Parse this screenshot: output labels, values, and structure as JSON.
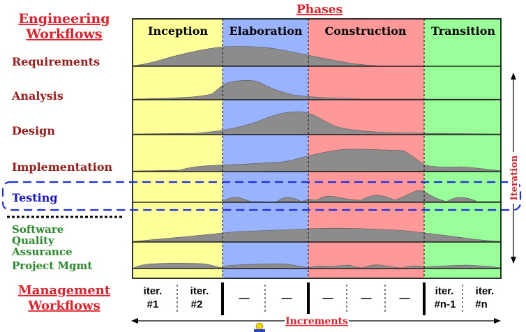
{
  "diagram": {
    "title_lines": [
      "Engineering",
      "Workflows"
    ],
    "phases_label": "Phases",
    "phases": [
      {
        "label": "Inception",
        "color": "#ffff99"
      },
      {
        "label": "Elaboration",
        "color": "#99b3ff"
      },
      {
        "label": "Construction",
        "color": "#ff9999"
      },
      {
        "label": "Transition",
        "color": "#99ff99"
      }
    ],
    "workflows": [
      {
        "label": "Requirements",
        "color": "#9b1b1b"
      },
      {
        "label": "Analysis",
        "color": "#9b1b1b"
      },
      {
        "label": "Design",
        "color": "#9b1b1b"
      },
      {
        "label": "Implementation",
        "color": "#9b1b1b"
      },
      {
        "label": "Testing",
        "color": "#1515c8"
      },
      {
        "label": "Software",
        "color": "#2a8a2a"
      },
      {
        "label": "Quality",
        "color": "#2a8a2a"
      },
      {
        "label": "Assurance",
        "color": "#2a8a2a"
      },
      {
        "label": "Project Mgmt",
        "color": "#2a8a2a"
      }
    ],
    "management_lines": [
      "Management",
      "Workflows"
    ],
    "iterations": [
      {
        "top": "iter.",
        "bottom": "#1"
      },
      {
        "top": "iter.",
        "bottom": "#2"
      },
      {
        "top": "—",
        "bottom": ""
      },
      {
        "top": "—",
        "bottom": ""
      },
      {
        "top": "—",
        "bottom": ""
      },
      {
        "top": "—",
        "bottom": ""
      },
      {
        "top": "—",
        "bottom": ""
      },
      {
        "top": "iter.",
        "bottom": "#n-1"
      },
      {
        "top": "iter.",
        "bottom": "#n"
      }
    ],
    "increments_label": "Increments",
    "iteration_label": "Iteration",
    "colors": {
      "heading_red": "#e0202a",
      "mountain": "#8c8c8c",
      "testing_box": "#1f2fe0"
    }
  }
}
